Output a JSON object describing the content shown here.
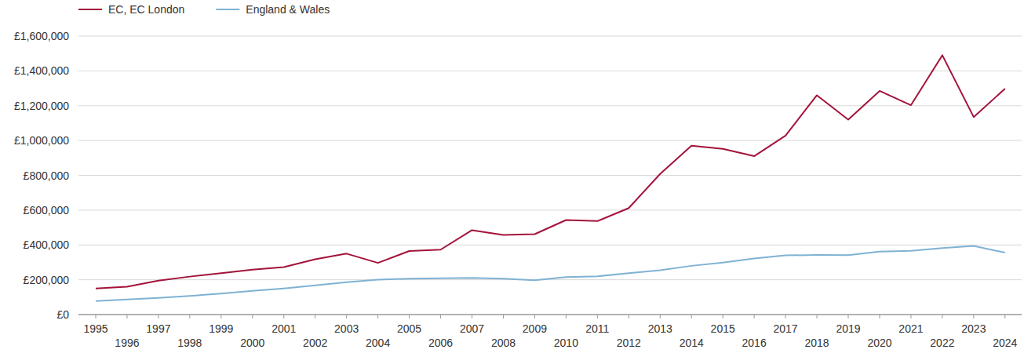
{
  "chart_data": {
    "type": "line",
    "x": [
      1995,
      1996,
      1997,
      1998,
      1999,
      2000,
      2001,
      2002,
      2003,
      2004,
      2005,
      2006,
      2007,
      2008,
      2009,
      2010,
      2011,
      2012,
      2013,
      2014,
      2015,
      2016,
      2017,
      2018,
      2019,
      2020,
      2021,
      2022,
      2023,
      2024
    ],
    "series": [
      {
        "name": "EC, EC London",
        "color": "#a3133a",
        "values": [
          150000,
          160000,
          195000,
          218000,
          238000,
          258000,
          273000,
          318000,
          350000,
          297000,
          365000,
          373000,
          485000,
          457000,
          462000,
          543000,
          537000,
          612000,
          808000,
          970000,
          952000,
          910000,
          1028000,
          1260000,
          1120000,
          1285000,
          1203000,
          1490000,
          1135000,
          1298000
        ]
      },
      {
        "name": "England & Wales",
        "color": "#7fb2d3",
        "values": [
          78000,
          87000,
          96000,
          107000,
          121000,
          136000,
          150000,
          168000,
          186000,
          201000,
          206000,
          209000,
          211000,
          206000,
          197000,
          215000,
          220000,
          238000,
          255000,
          280000,
          299000,
          322000,
          340000,
          342000,
          341000,
          362000,
          366000,
          382000,
          394000,
          356000
        ]
      }
    ],
    "xlim": [
      1994.45,
      2024.53
    ],
    "xticks": [
      1995,
      1996,
      1997,
      1998,
      1999,
      2000,
      2001,
      2002,
      2003,
      2004,
      2005,
      2006,
      2007,
      2008,
      2009,
      2010,
      2011,
      2012,
      2013,
      2014,
      2015,
      2016,
      2017,
      2018,
      2019,
      2020,
      2021,
      2022,
      2023,
      2024
    ],
    "ylim": [
      0,
      1600000
    ],
    "yticks": [
      {
        "value": 0,
        "label": "£0"
      },
      {
        "value": 200000,
        "label": "£200,000"
      },
      {
        "value": 400000,
        "label": "£400,000"
      },
      {
        "value": 600000,
        "label": "£600,000"
      },
      {
        "value": 800000,
        "label": "£800,000"
      },
      {
        "value": 1000000,
        "label": "£1,000,000"
      },
      {
        "value": 1200000,
        "label": "£1,200,000"
      },
      {
        "value": 1400000,
        "label": "£1,400,000"
      },
      {
        "value": 1600000,
        "label": "£1,600,000"
      }
    ],
    "grid": true,
    "legend": "top-left"
  }
}
